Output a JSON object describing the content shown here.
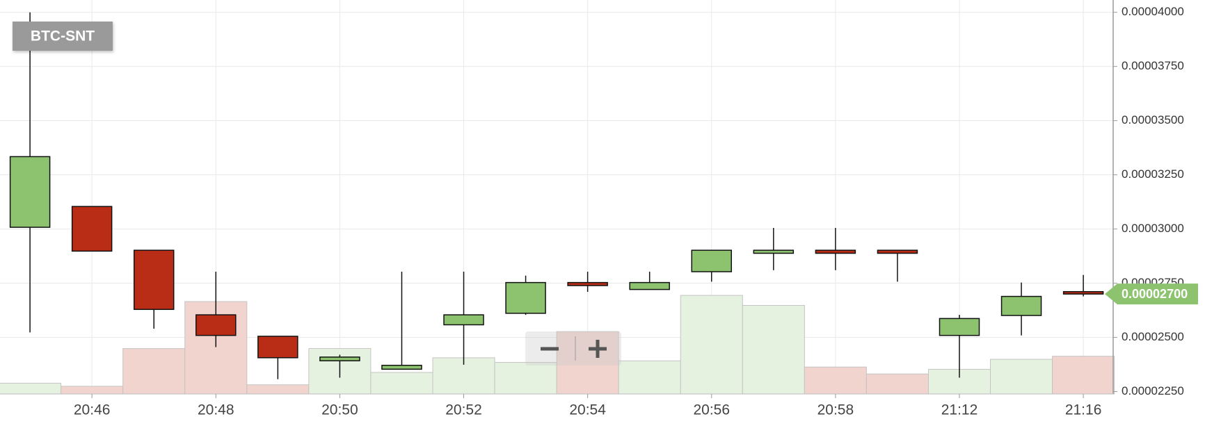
{
  "chart_data": {
    "type": "candlestick",
    "title": "BTC-SNT",
    "categories": [
      null,
      "20:46",
      null,
      "20:48",
      null,
      "20:50",
      null,
      "20:52",
      null,
      "20:54",
      null,
      "20:56",
      null,
      "20:58",
      null,
      "21:12",
      null,
      "21:16"
    ],
    "open": [
      3.008e-05,
      3.104e-05,
      2.902e-05,
      2.604e-05,
      2.505e-05,
      2.392e-05,
      2.353e-05,
      2.558e-05,
      2.611e-05,
      2.753e-05,
      2.721e-05,
      2.803e-05,
      2.888e-05,
      2.902e-05,
      2.902e-05,
      2.509e-05,
      2.601e-05,
      2.711e-05
    ],
    "high": [
      4e-05,
      3.104e-05,
      2.902e-05,
      2.803e-05,
      2.505e-05,
      2.42e-05,
      2.803e-05,
      2.803e-05,
      2.785e-05,
      2.803e-05,
      2.803e-05,
      2.902e-05,
      3.005e-05,
      3.005e-05,
      2.902e-05,
      2.604e-05,
      2.753e-05,
      2.788e-05
    ],
    "low": [
      2.523e-05,
      2.898e-05,
      2.54e-05,
      2.455e-05,
      2.307e-05,
      2.314e-05,
      2.353e-05,
      2.374e-05,
      2.604e-05,
      2.71e-05,
      2.721e-05,
      2.757e-05,
      2.81e-05,
      2.81e-05,
      2.757e-05,
      2.314e-05,
      2.509e-05,
      2.689e-05
    ],
    "close": [
      3.334e-05,
      2.898e-05,
      2.629e-05,
      2.509e-05,
      2.406e-05,
      2.409e-05,
      2.371e-05,
      2.604e-05,
      2.753e-05,
      2.739e-05,
      2.753e-05,
      2.902e-05,
      2.902e-05,
      2.888e-05,
      2.888e-05,
      2.587e-05,
      2.689e-05,
      2.7e-05
    ],
    "volume": [
      14,
      10,
      59,
      120,
      12,
      59,
      28,
      47,
      41,
      81,
      43,
      128,
      115,
      35,
      26,
      32,
      45,
      49
    ],
    "up_color": "#8dc26f",
    "down_color": "#b92c16",
    "volume_up_color": "#e6f2e0",
    "volume_down_color": "#f2d4ce",
    "ylim": [
      2.25e-05,
      4e-05
    ],
    "yticks": [
      {
        "value": 2.25e-05,
        "label": "0.00002250"
      },
      {
        "value": 2.5e-05,
        "label": "0.00002500"
      },
      {
        "value": 2.75e-05,
        "label": "0.00002750"
      },
      {
        "value": 3e-05,
        "label": "0.00003000"
      },
      {
        "value": 3.25e-05,
        "label": "0.00003250"
      },
      {
        "value": 3.5e-05,
        "label": "0.00003500"
      },
      {
        "value": 3.75e-05,
        "label": "0.00003750"
      },
      {
        "value": 4e-05,
        "label": "0.00004000"
      }
    ],
    "last_price": {
      "value": 2.7e-05,
      "label": "0.00002700"
    },
    "grid": true
  }
}
